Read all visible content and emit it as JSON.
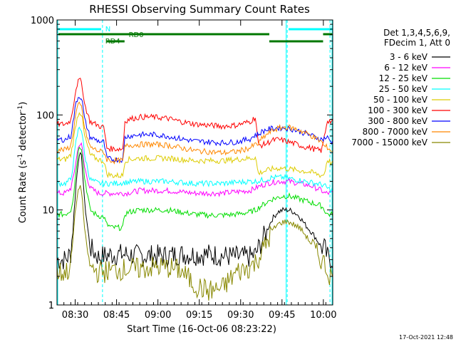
{
  "chart_data": {
    "type": "line",
    "title": "RHESSI Observing Summary Count Rates",
    "xlabel": "Start Time (16-Oct-06 08:23:22)",
    "ylabel_main": "Count Rate (s",
    "ylabel_sup1": "-1",
    "ylabel_mid": " detector",
    "ylabel_sup2": "-1",
    "ylabel_end": ")",
    "x_unit": "minutes after 08:23:22",
    "xlim": [
      0,
      100
    ],
    "ylim": [
      1,
      1000
    ],
    "y_scale": "log",
    "x_ticks": [
      {
        "label": "08:30",
        "value": 6.6
      },
      {
        "label": "08:45",
        "value": 21.6
      },
      {
        "label": "09:00",
        "value": 36.6
      },
      {
        "label": "09:15",
        "value": 51.6
      },
      {
        "label": "09:30",
        "value": 66.6
      },
      {
        "label": "09:45",
        "value": 81.6
      },
      {
        "label": "10:00",
        "value": 96.6
      }
    ],
    "y_ticks": [
      {
        "label": "1",
        "value": 1
      },
      {
        "label": "10",
        "value": 10
      },
      {
        "label": "100",
        "value": 100
      },
      {
        "label": "1000",
        "value": 1000
      }
    ],
    "legend_header": [
      "Det 1,3,4,5,6,9,",
      "FDecim 1, Att 0"
    ],
    "footer_stamp": "17-Oct-2021 12:48",
    "series": [
      {
        "name": "3 - 6 keV",
        "color": "#000000",
        "x": [
          0,
          3,
          5,
          6,
          7,
          8,
          9,
          10,
          12,
          15,
          20,
          25,
          30,
          35,
          40,
          45,
          50,
          55,
          60,
          65,
          70,
          72,
          74,
          76,
          78,
          80,
          82,
          84,
          86,
          88,
          90,
          92,
          94,
          96,
          97,
          98,
          99.5
        ],
        "y": [
          3,
          3,
          3.5,
          8,
          20,
          40,
          35,
          12,
          4,
          3.2,
          3.4,
          3.4,
          3.3,
          3.3,
          3.3,
          3.4,
          3.4,
          3.4,
          3.3,
          3.2,
          3.2,
          3.4,
          4.5,
          6,
          8,
          9.5,
          10,
          10,
          9.5,
          8.5,
          7,
          6,
          5,
          4,
          4,
          3.2,
          3
        ]
      },
      {
        "name": "6 - 12 keV",
        "color": "#ff00ff",
        "x": [
          0,
          3,
          5,
          6,
          7,
          8,
          9,
          10,
          12,
          15,
          20,
          25,
          30,
          35,
          40,
          45,
          50,
          55,
          60,
          65,
          70,
          72,
          74,
          76,
          78,
          80,
          82,
          84,
          86,
          88,
          90,
          92,
          94,
          96,
          97,
          98,
          99.5
        ],
        "y": [
          15,
          15,
          17,
          22,
          35,
          50,
          48,
          28,
          17,
          15,
          15,
          15,
          16,
          16,
          16,
          15.5,
          15,
          15,
          15,
          15.5,
          16,
          17,
          18,
          19,
          19.5,
          20,
          20,
          20,
          19.5,
          19,
          18.5,
          18,
          17,
          16,
          15,
          15,
          15
        ]
      },
      {
        "name": "12 - 25 keV",
        "color": "#00dd00",
        "x": [
          0,
          3,
          5,
          6,
          7,
          8,
          9,
          10,
          12,
          14,
          16,
          17,
          18,
          20,
          24,
          24.5,
          26,
          30,
          35,
          40,
          45,
          50,
          55,
          60,
          65,
          70,
          72,
          74,
          76,
          78,
          80,
          82,
          84,
          86,
          88,
          90,
          92,
          94,
          96,
          97,
          98,
          99.5
        ],
        "y": [
          9,
          9,
          10,
          14,
          28,
          48,
          45,
          22,
          10,
          9,
          8.5,
          8.5,
          7,
          6.5,
          6.5,
          9,
          9.5,
          10,
          10,
          10,
          9.5,
          9,
          8.8,
          8.8,
          9,
          9.5,
          10,
          11,
          12,
          13,
          13.5,
          14,
          14,
          13.5,
          13,
          12.5,
          12,
          11.5,
          11,
          10,
          9,
          9
        ]
      },
      {
        "name": "25 - 50 keV",
        "color": "#00ffff",
        "x": [
          0,
          3,
          5,
          6,
          7,
          8,
          9,
          10,
          12,
          15,
          20,
          25,
          30,
          35,
          40,
          45,
          50,
          55,
          60,
          65,
          70,
          72,
          74,
          76,
          78,
          80,
          82,
          84,
          86,
          88,
          90,
          92,
          94,
          96,
          97,
          98,
          99.5
        ],
        "y": [
          19,
          19,
          21,
          32,
          55,
          75,
          70,
          38,
          21,
          19,
          19,
          19.5,
          20,
          20,
          20,
          19.5,
          19,
          19,
          19,
          19.5,
          20,
          20,
          20.5,
          21,
          22,
          22,
          22,
          21.5,
          21,
          20.5,
          20,
          19.5,
          19,
          18.5,
          18,
          17,
          16
        ]
      },
      {
        "name": "50 - 100 keV",
        "color": "#ddcc00",
        "x": [
          0,
          3,
          5,
          6,
          7,
          8,
          9,
          10,
          12,
          14,
          16,
          17,
          18,
          20,
          24,
          24.5,
          26,
          30,
          35,
          40,
          45,
          50,
          55,
          60,
          65,
          70,
          72,
          73,
          74,
          76,
          78,
          80,
          82,
          84,
          86,
          88,
          90,
          92,
          94,
          96,
          97,
          98,
          99.5
        ],
        "y": [
          34,
          34,
          38,
          55,
          85,
          110,
          100,
          60,
          38,
          35,
          33,
          33,
          24,
          23,
          23,
          33,
          34,
          35,
          35,
          35,
          34,
          33,
          33,
          33,
          34,
          35,
          36,
          24,
          25,
          26,
          27,
          27.5,
          27.5,
          27,
          26.5,
          26,
          25.5,
          25,
          24,
          23,
          24,
          34,
          31
        ]
      },
      {
        "name": "100 - 300 keV",
        "color": "#ff0000",
        "x": [
          0,
          3,
          5,
          6,
          7,
          8,
          9,
          10,
          12,
          14,
          16,
          17,
          18,
          20,
          24,
          24.5,
          26,
          30,
          35,
          40,
          45,
          50,
          55,
          60,
          65,
          70,
          72,
          73,
          74,
          76,
          78,
          80,
          82,
          84,
          86,
          88,
          90,
          92,
          94,
          96,
          97,
          98,
          99.5
        ],
        "y": [
          80,
          80,
          88,
          130,
          200,
          235,
          220,
          130,
          85,
          80,
          75,
          75,
          45,
          44,
          44,
          85,
          90,
          95,
          95,
          92,
          85,
          80,
          78,
          76,
          78,
          85,
          95,
          48,
          48,
          50,
          54,
          55,
          54,
          52,
          50,
          48,
          46,
          45,
          43,
          42,
          60,
          88,
          85
        ]
      },
      {
        "name": "300 - 800 keV",
        "color": "#0000ff",
        "x": [
          0,
          3,
          5,
          6,
          7,
          8,
          9,
          10,
          12,
          14,
          16,
          17,
          18,
          20,
          24,
          24.5,
          26,
          30,
          35,
          40,
          45,
          50,
          55,
          60,
          65,
          70,
          72,
          73,
          74,
          76,
          78,
          80,
          82,
          84,
          86,
          88,
          90,
          92,
          94,
          96,
          97,
          98,
          99.5
        ],
        "y": [
          55,
          55,
          60,
          90,
          140,
          160,
          150,
          90,
          58,
          55,
          52,
          52,
          35,
          34,
          34,
          58,
          60,
          62,
          62,
          60,
          56,
          53,
          52,
          51,
          52,
          56,
          62,
          62,
          66,
          70,
          72,
          73,
          73,
          72,
          70,
          67,
          64,
          61,
          58,
          55,
          57,
          58,
          52
        ]
      },
      {
        "name": "800 - 7000 keV",
        "color": "#ff8800",
        "x": [
          0,
          3,
          5,
          6,
          7,
          8,
          9,
          10,
          12,
          14,
          16,
          17,
          18,
          20,
          24,
          24.5,
          26,
          30,
          35,
          40,
          45,
          50,
          55,
          60,
          65,
          70,
          72,
          73,
          74,
          76,
          78,
          80,
          82,
          84,
          86,
          88,
          90,
          92,
          94,
          96,
          97,
          98,
          99.5
        ],
        "y": [
          43,
          43,
          47,
          70,
          110,
          130,
          120,
          72,
          46,
          43,
          41,
          41,
          34,
          33,
          33,
          46,
          48,
          49,
          49,
          48,
          45,
          42,
          41,
          40,
          41,
          45,
          49,
          49,
          55,
          62,
          68,
          72,
          74,
          74,
          72,
          69,
          65,
          61,
          56,
          52,
          46,
          46,
          42
        ]
      },
      {
        "name": "7000 - 15000 keV",
        "color": "#888800",
        "x": [
          0,
          3,
          5,
          6,
          7,
          8,
          9,
          10,
          12,
          15,
          20,
          25,
          30,
          35,
          40,
          45,
          50,
          55,
          60,
          65,
          70,
          72,
          74,
          76,
          78,
          80,
          82,
          84,
          86,
          88,
          90,
          92,
          94,
          96,
          97,
          98,
          99.5
        ],
        "y": [
          2.2,
          2.2,
          2.5,
          6,
          12,
          18,
          16,
          6,
          2.5,
          2.2,
          2.3,
          2.4,
          2.4,
          2.5,
          2.5,
          2.3,
          1.6,
          1.4,
          1.5,
          2.2,
          2.5,
          2.8,
          3.5,
          4.5,
          6,
          7,
          7.5,
          7.5,
          7,
          6.5,
          5.5,
          4.5,
          3.5,
          3,
          2.7,
          2.3,
          2
        ]
      }
    ],
    "annotations": {
      "flag_labels": [
        "N",
        "RD0",
        "RD4"
      ],
      "vertical_markers_cyan_x": [
        0,
        100
      ],
      "vertical_markers_dashed_x": [
        16.5,
        83.5,
        99
      ]
    }
  }
}
